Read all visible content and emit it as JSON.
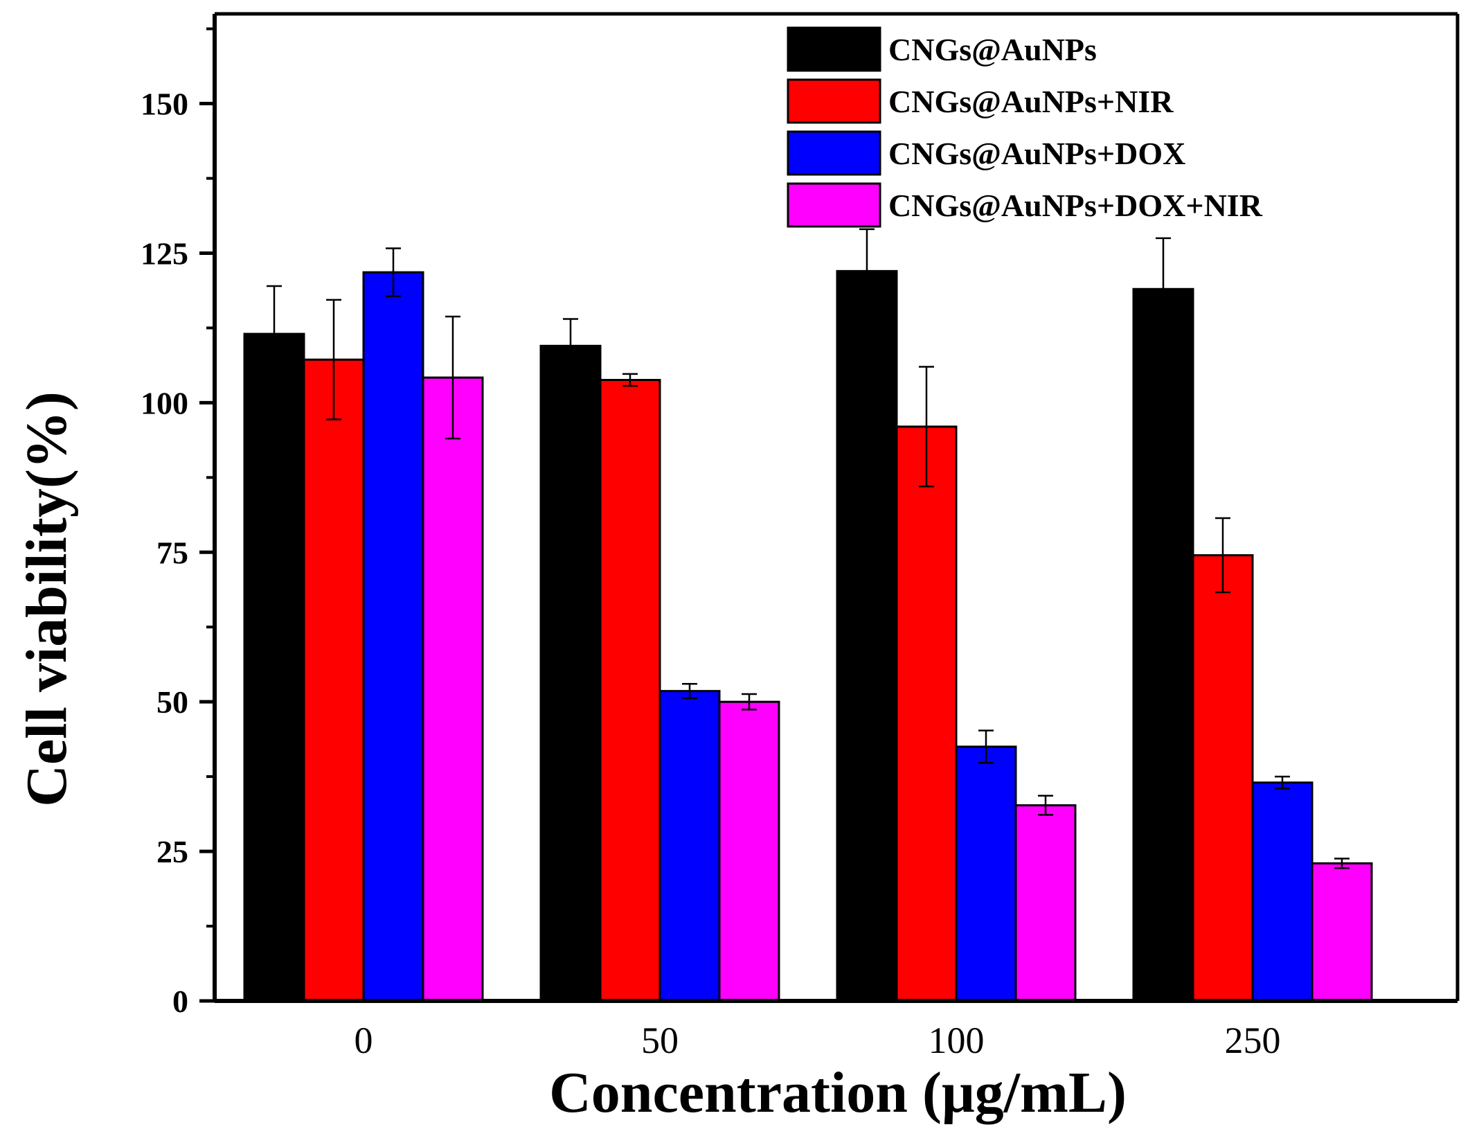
{
  "chart_data": {
    "type": "bar",
    "xlabel": "Concentration (μg/mL)",
    "ylabel": "Cell viability(%)",
    "categories": [
      "0",
      "50",
      "100",
      "250"
    ],
    "ylim": [
      0,
      165
    ],
    "yticks": [
      0,
      25,
      50,
      75,
      100,
      125,
      150
    ],
    "legend_position": "top-right",
    "grid": false,
    "series": [
      {
        "name": "CNGs@AuNPs",
        "color": "#000000",
        "values": [
          111.5,
          109.5,
          122.0,
          119.0
        ],
        "errors": [
          8.0,
          4.5,
          7.0,
          8.5
        ]
      },
      {
        "name": "CNGs@AuNPs+NIR",
        "color": "#ff0000",
        "values": [
          107.2,
          103.8,
          96.0,
          74.5
        ],
        "errors": [
          10.0,
          1.0,
          10.0,
          6.2
        ]
      },
      {
        "name": "CNGs@AuNPs+DOX",
        "color": "#0000ff",
        "values": [
          121.8,
          51.8,
          42.5,
          36.5
        ],
        "errors": [
          4.0,
          1.2,
          2.7,
          1.0
        ]
      },
      {
        "name": "CNGs@AuNPs+DOX+NIR",
        "color": "#ff00ff",
        "values": [
          104.2,
          50.0,
          32.7,
          23.0
        ],
        "errors": [
          10.2,
          1.3,
          1.6,
          0.8
        ]
      }
    ]
  }
}
